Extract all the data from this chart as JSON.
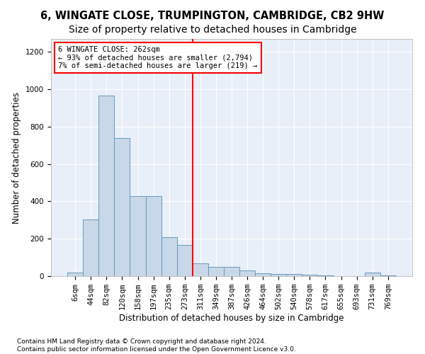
{
  "title": "6, WINGATE CLOSE, TRUMPINGTON, CAMBRIDGE, CB2 9HW",
  "subtitle": "Size of property relative to detached houses in Cambridge",
  "xlabel": "Distribution of detached houses by size in Cambridge",
  "ylabel": "Number of detached properties",
  "categories": [
    "6sqm",
    "44sqm",
    "82sqm",
    "120sqm",
    "158sqm",
    "197sqm",
    "235sqm",
    "273sqm",
    "311sqm",
    "349sqm",
    "387sqm",
    "426sqm",
    "464sqm",
    "502sqm",
    "540sqm",
    "578sqm",
    "617sqm",
    "655sqm",
    "693sqm",
    "731sqm",
    "769sqm"
  ],
  "values": [
    20,
    305,
    965,
    740,
    430,
    430,
    210,
    165,
    70,
    50,
    50,
    30,
    15,
    10,
    10,
    8,
    5,
    0,
    0,
    20,
    5
  ],
  "bar_color": "#c8d8e8",
  "bar_edge_color": "#6699bb",
  "bar_edge_width": 0.7,
  "vline_pos": 7.5,
  "vline_color": "red",
  "annotation_text_line1": "6 WINGATE CLOSE: 262sqm",
  "annotation_text_line2": "← 93% of detached houses are smaller (2,794)",
  "annotation_text_line3": "7% of semi-detached houses are larger (219) →",
  "ylim": [
    0,
    1270
  ],
  "yticks": [
    0,
    200,
    400,
    600,
    800,
    1000,
    1200
  ],
  "bg_color": "#ffffff",
  "plot_bg_color": "#e8eff8",
  "grid_color": "#ffffff",
  "footer_line1": "Contains HM Land Registry data © Crown copyright and database right 2024.",
  "footer_line2": "Contains public sector information licensed under the Open Government Licence v3.0.",
  "title_fontsize": 10.5,
  "xlabel_fontsize": 8.5,
  "ylabel_fontsize": 8.5,
  "tick_fontsize": 7.5,
  "footer_fontsize": 6.5,
  "annotation_fontsize": 7.5
}
